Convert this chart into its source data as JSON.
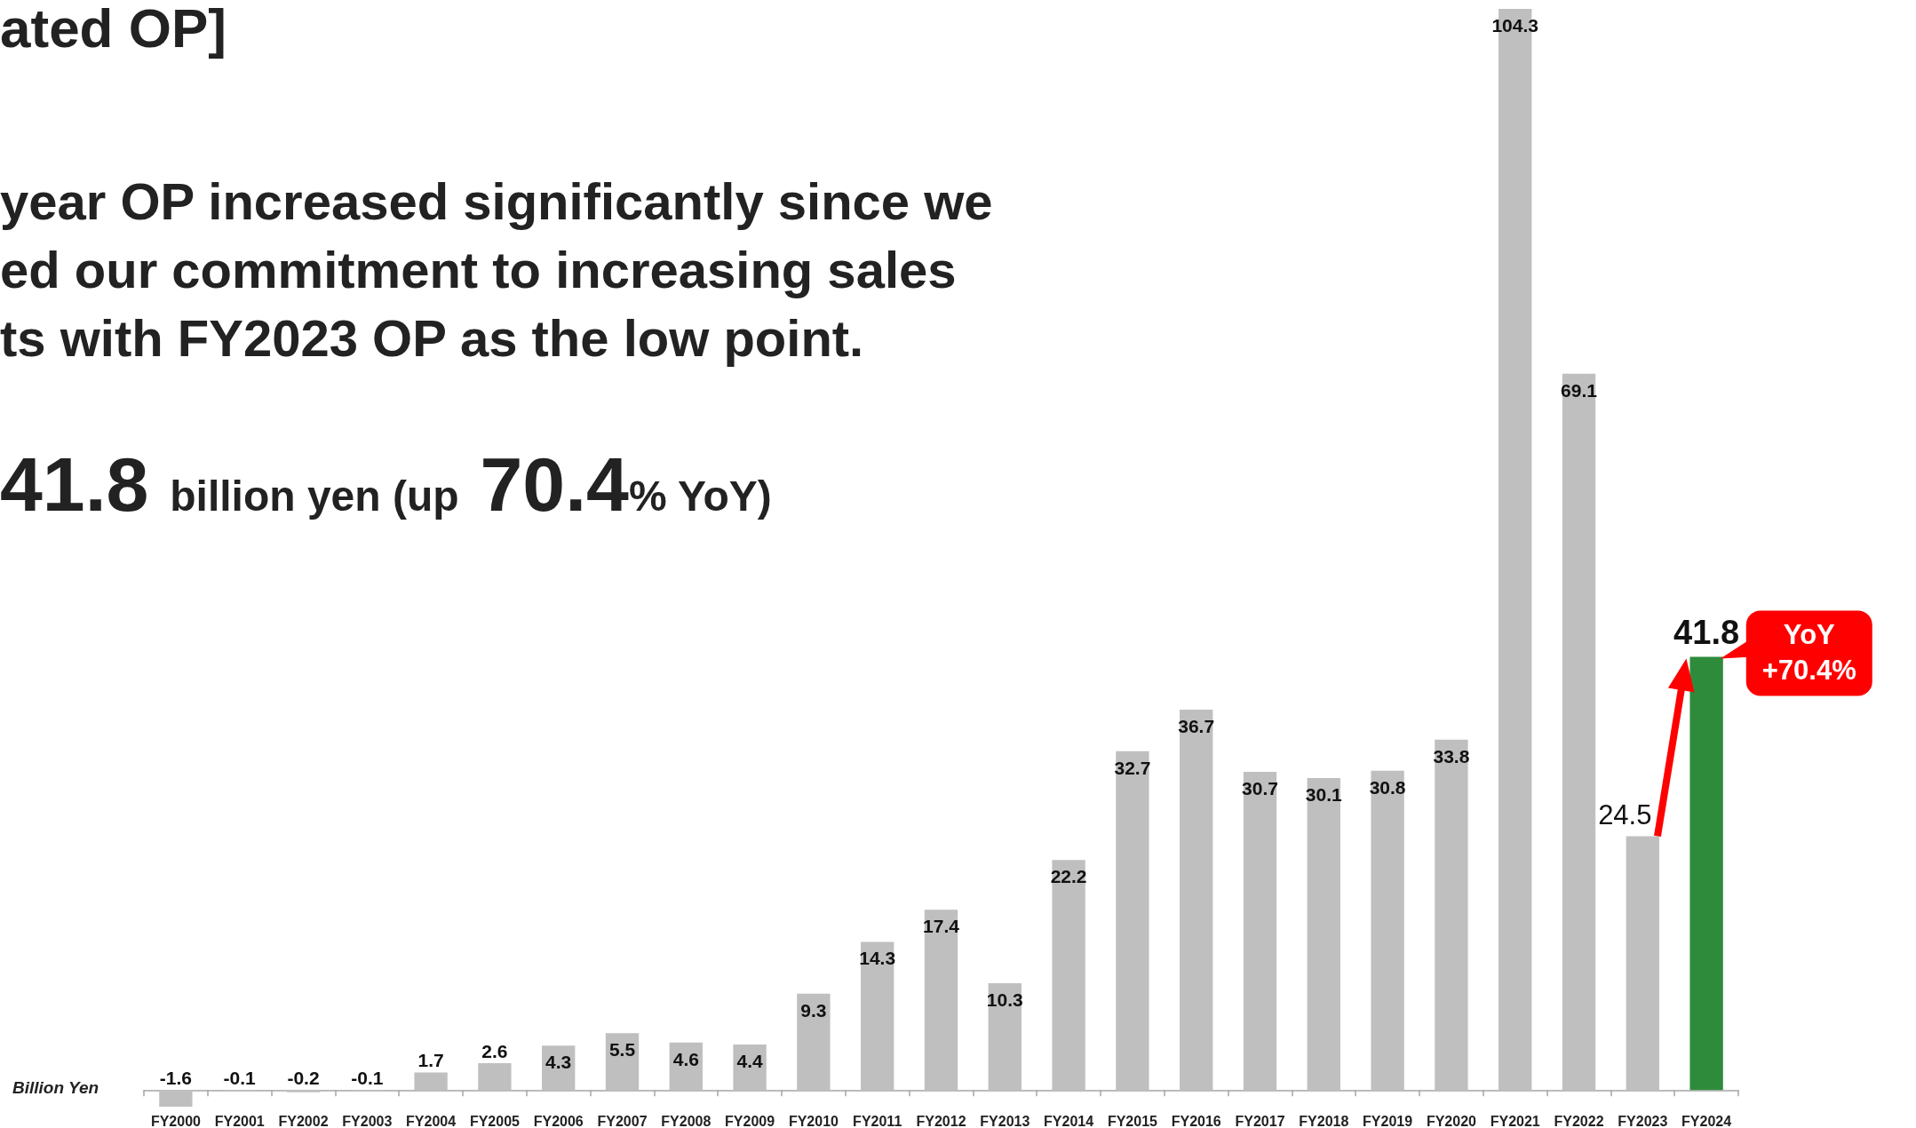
{
  "chart_data": {
    "type": "bar",
    "title": "ated OP]",
    "subtitle": "year OP increased significantly since we\ned our commitment to increasing sales\nts with FY2023 OP as the low point.",
    "ylabel": "Billion Yen",
    "annotations": [
      "41.8 billion yen (up 70.4% YoY)",
      {
        "text": "YoY\n+70.4%",
        "x": "FY2024",
        "y": 41.8
      }
    ],
    "categories": [
      "FY2000",
      "FY2001",
      "FY2002",
      "FY2003",
      "FY2004",
      "FY2005",
      "FY2006",
      "FY2007",
      "FY2008",
      "FY2009",
      "FY2010",
      "FY2011",
      "FY2012",
      "FY2013",
      "FY2014",
      "FY2015",
      "FY2016",
      "FY2017",
      "FY2018",
      "FY2019",
      "FY2020",
      "FY2021",
      "FY2022",
      "FY2023",
      "FY2024"
    ],
    "values": [
      -1.6,
      -0.1,
      -0.2,
      -0.1,
      1.7,
      2.6,
      4.3,
      5.5,
      4.6,
      4.4,
      9.3,
      14.3,
      17.4,
      10.3,
      22.2,
      32.7,
      36.7,
      30.7,
      30.1,
      30.8,
      33.8,
      104.3,
      69.1,
      24.5,
      41.8
    ],
    "colors": [
      "#bfbfbf",
      "#bfbfbf",
      "#bfbfbf",
      "#bfbfbf",
      "#bfbfbf",
      "#bfbfbf",
      "#bfbfbf",
      "#bfbfbf",
      "#bfbfbf",
      "#bfbfbf",
      "#bfbfbf",
      "#bfbfbf",
      "#bfbfbf",
      "#bfbfbf",
      "#bfbfbf",
      "#bfbfbf",
      "#bfbfbf",
      "#bfbfbf",
      "#bfbfbf",
      "#bfbfbf",
      "#bfbfbf",
      "#bfbfbf",
      "#bfbfbf",
      "#bfbfbf",
      "#2e8b3b"
    ],
    "data_labels": true
  }
}
